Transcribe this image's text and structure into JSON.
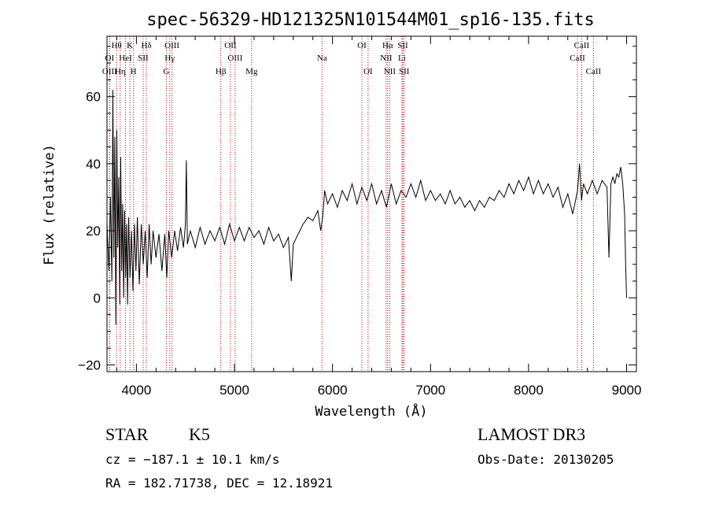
{
  "chart_data": {
    "type": "line",
    "title": "spec-56329-HD121325N101544M01_sp16-135.fits",
    "xlabel": "Wavelength (Å)",
    "ylabel": "Flux (relative)",
    "xlim": [
      3700,
      9100
    ],
    "ylim": [
      -22,
      78
    ],
    "x_ticks": [
      4000,
      5000,
      6000,
      7000,
      8000,
      9000
    ],
    "y_ticks": [
      -20,
      0,
      20,
      40,
      60
    ],
    "grid": false,
    "series": [
      {
        "points": [
          [
            3700,
            22
          ],
          [
            3720,
            8
          ],
          [
            3735,
            30
          ],
          [
            3750,
            5
          ],
          [
            3760,
            62
          ],
          [
            3770,
            12
          ],
          [
            3780,
            48
          ],
          [
            3790,
            -8
          ],
          [
            3800,
            50
          ],
          [
            3810,
            15
          ],
          [
            3820,
            36
          ],
          [
            3830,
            -2
          ],
          [
            3840,
            42
          ],
          [
            3850,
            8
          ],
          [
            3860,
            28
          ],
          [
            3870,
            0
          ],
          [
            3880,
            26
          ],
          [
            3890,
            6
          ],
          [
            3900,
            22
          ],
          [
            3910,
            -2
          ],
          [
            3920,
            24
          ],
          [
            3935,
            6
          ],
          [
            3950,
            20
          ],
          [
            3965,
            2
          ],
          [
            3980,
            22
          ],
          [
            3995,
            8
          ],
          [
            4010,
            24
          ],
          [
            4030,
            4
          ],
          [
            4050,
            22
          ],
          [
            4070,
            10
          ],
          [
            4090,
            20
          ],
          [
            4110,
            6
          ],
          [
            4130,
            22
          ],
          [
            4150,
            10
          ],
          [
            4170,
            20
          ],
          [
            4200,
            12
          ],
          [
            4230,
            19
          ],
          [
            4260,
            8
          ],
          [
            4290,
            19
          ],
          [
            4310,
            6
          ],
          [
            4330,
            20
          ],
          [
            4360,
            12
          ],
          [
            4390,
            20
          ],
          [
            4420,
            14
          ],
          [
            4450,
            21
          ],
          [
            4480,
            15
          ],
          [
            4500,
            22
          ],
          [
            4510,
            41
          ],
          [
            4520,
            16
          ],
          [
            4550,
            20
          ],
          [
            4600,
            15
          ],
          [
            4650,
            21
          ],
          [
            4700,
            16
          ],
          [
            4750,
            20
          ],
          [
            4800,
            17
          ],
          [
            4850,
            21
          ],
          [
            4900,
            16
          ],
          [
            4950,
            22
          ],
          [
            5000,
            17
          ],
          [
            5050,
            21
          ],
          [
            5100,
            17
          ],
          [
            5150,
            21
          ],
          [
            5200,
            18
          ],
          [
            5250,
            20
          ],
          [
            5300,
            16
          ],
          [
            5350,
            21
          ],
          [
            5400,
            17
          ],
          [
            5450,
            19
          ],
          [
            5500,
            15
          ],
          [
            5550,
            18
          ],
          [
            5580,
            5
          ],
          [
            5600,
            16
          ],
          [
            5650,
            19
          ],
          [
            5700,
            22
          ],
          [
            5750,
            24
          ],
          [
            5800,
            23
          ],
          [
            5850,
            26
          ],
          [
            5880,
            20
          ],
          [
            5900,
            24
          ],
          [
            5920,
            32
          ],
          [
            5950,
            28
          ],
          [
            6000,
            31
          ],
          [
            6050,
            27
          ],
          [
            6100,
            32
          ],
          [
            6150,
            29
          ],
          [
            6200,
            34
          ],
          [
            6250,
            28
          ],
          [
            6300,
            33
          ],
          [
            6350,
            29
          ],
          [
            6400,
            34
          ],
          [
            6450,
            28
          ],
          [
            6500,
            32
          ],
          [
            6550,
            27
          ],
          [
            6600,
            34
          ],
          [
            6650,
            28
          ],
          [
            6700,
            32
          ],
          [
            6750,
            30
          ],
          [
            6800,
            34
          ],
          [
            6850,
            30
          ],
          [
            6900,
            35
          ],
          [
            6950,
            29
          ],
          [
            7000,
            32
          ],
          [
            7050,
            29
          ],
          [
            7100,
            31
          ],
          [
            7150,
            28
          ],
          [
            7200,
            32
          ],
          [
            7250,
            28
          ],
          [
            7300,
            30
          ],
          [
            7350,
            27
          ],
          [
            7400,
            29
          ],
          [
            7450,
            26
          ],
          [
            7500,
            29
          ],
          [
            7550,
            27
          ],
          [
            7600,
            30
          ],
          [
            7650,
            29
          ],
          [
            7700,
            32
          ],
          [
            7750,
            30
          ],
          [
            7800,
            34
          ],
          [
            7850,
            31
          ],
          [
            7900,
            35
          ],
          [
            7950,
            32
          ],
          [
            8000,
            36
          ],
          [
            8050,
            31
          ],
          [
            8100,
            35
          ],
          [
            8150,
            31
          ],
          [
            8200,
            34
          ],
          [
            8250,
            30
          ],
          [
            8300,
            33
          ],
          [
            8350,
            27
          ],
          [
            8400,
            31
          ],
          [
            8450,
            25
          ],
          [
            8500,
            32
          ],
          [
            8520,
            40
          ],
          [
            8540,
            29
          ],
          [
            8560,
            34
          ],
          [
            8600,
            31
          ],
          [
            8650,
            35
          ],
          [
            8700,
            31
          ],
          [
            8750,
            35
          ],
          [
            8800,
            33
          ],
          [
            8820,
            12
          ],
          [
            8840,
            34
          ],
          [
            8860,
            36
          ],
          [
            8880,
            34
          ],
          [
            8900,
            37
          ],
          [
            8920,
            36
          ],
          [
            8940,
            39
          ],
          [
            8960,
            34
          ],
          [
            8980,
            25
          ],
          [
            8990,
            10
          ],
          [
            9000,
            0
          ]
        ]
      }
    ],
    "lines": [
      {
        "label": "Hθ",
        "wavelength": 3798,
        "row": 0
      },
      {
        "label": "K",
        "wavelength": 3934,
        "row": 0
      },
      {
        "label": "Hδ",
        "wavelength": 4102,
        "row": 0
      },
      {
        "label": "OIII",
        "wavelength": 4363,
        "row": 0
      },
      {
        "label": "OII",
        "wavelength": 4959,
        "row": 0
      },
      {
        "label": "OI",
        "wavelength": 6300,
        "row": 0
      },
      {
        "label": "Hα",
        "wavelength": 6563,
        "row": 0
      },
      {
        "label": "SII",
        "wavelength": 6717,
        "row": 0
      },
      {
        "label": "CaII",
        "wavelength": 8542,
        "row": 0
      },
      {
        "label": "OI",
        "wavelength": 3727,
        "row": 1
      },
      {
        "label": "HeI",
        "wavelength": 3889,
        "row": 1
      },
      {
        "label": "SII",
        "wavelength": 4069,
        "row": 1
      },
      {
        "label": "Hγ",
        "wavelength": 4340,
        "row": 1
      },
      {
        "label": "OIII",
        "wavelength": 5007,
        "row": 1
      },
      {
        "label": "Na",
        "wavelength": 5893,
        "row": 1
      },
      {
        "label": "NII",
        "wavelength": 6548,
        "row": 1
      },
      {
        "label": "Li",
        "wavelength": 6708,
        "row": 1
      },
      {
        "label": "CaII",
        "wavelength": 8498,
        "row": 1
      },
      {
        "label": "OIII",
        "wavelength": 3727,
        "row": 2
      },
      {
        "label": "Hη",
        "wavelength": 3835,
        "row": 2
      },
      {
        "label": "H",
        "wavelength": 3970,
        "row": 2
      },
      {
        "label": "G",
        "wavelength": 4305,
        "row": 2
      },
      {
        "label": "Hβ",
        "wavelength": 4861,
        "row": 2
      },
      {
        "label": "Mg",
        "wavelength": 5175,
        "row": 2
      },
      {
        "label": "OI",
        "wavelength": 6363,
        "row": 2
      },
      {
        "label": "NII",
        "wavelength": 6584,
        "row": 2
      },
      {
        "label": "SII",
        "wavelength": 6731,
        "row": 2
      },
      {
        "label": "CaII",
        "wavelength": 8662,
        "row": 2
      }
    ],
    "line_color": "#cc0000"
  },
  "info": {
    "class_label": "STAR",
    "subclass_label": "K5",
    "survey": "LAMOST DR3",
    "cz": "cz = −187.1 ± 10.1 km/s",
    "obs_date": "Obs-Date: 20130205",
    "coords": "RA = 182.71738, DEC =  12.18921"
  }
}
